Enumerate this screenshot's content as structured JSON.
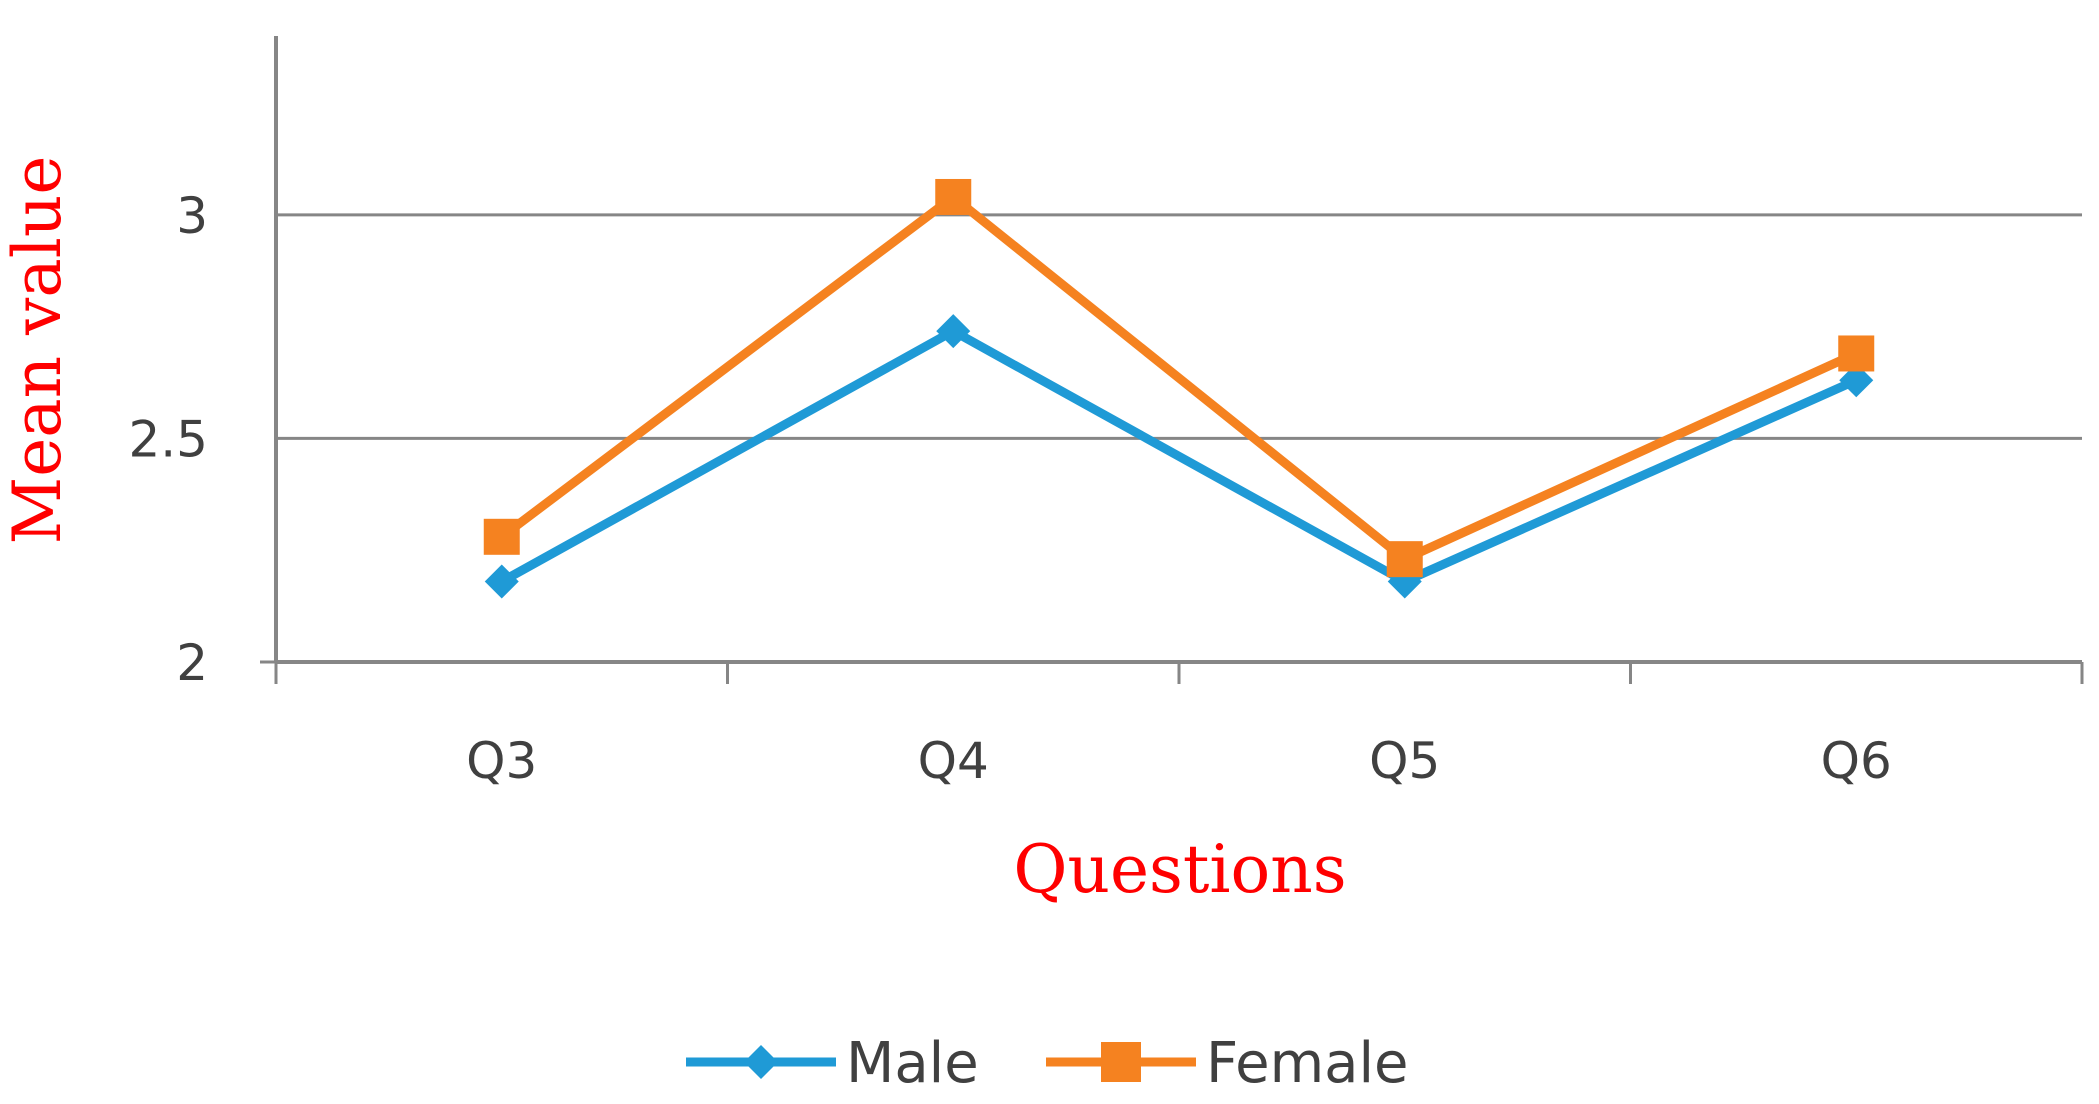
{
  "chart_data": {
    "type": "line",
    "categories": [
      "Q3",
      "Q4",
      "Q5",
      "Q6"
    ],
    "series": [
      {
        "name": "Male",
        "values": [
          2.18,
          2.74,
          2.18,
          2.63
        ],
        "color": "#1f9ad6",
        "marker": "diamond"
      },
      {
        "name": "Female",
        "values": [
          2.28,
          3.04,
          2.23,
          2.69
        ],
        "color": "#f58220",
        "marker": "square"
      }
    ],
    "title": "",
    "xlabel": "Questions",
    "ylabel": "Mean value",
    "ylim": [
      2,
      3.4
    ],
    "yticks": [
      "2",
      "2.5",
      "3"
    ],
    "ytick_values": [
      2,
      2.5,
      3
    ],
    "grid": true,
    "legend": "bottom",
    "axis_title_color": "#ff0000",
    "text_color": "#404040",
    "axis_color": "#868686"
  }
}
